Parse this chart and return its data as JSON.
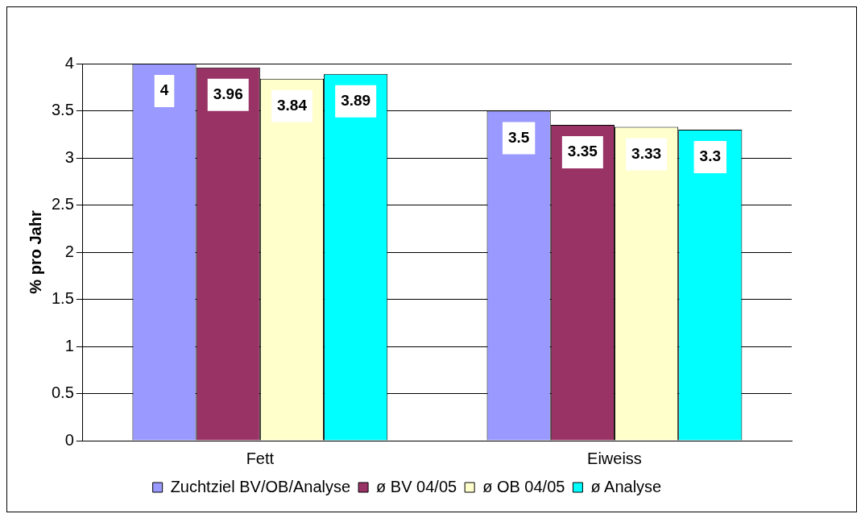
{
  "chart_data": {
    "type": "bar",
    "ylabel": "% pro Jahr",
    "categories": [
      "Fett",
      "Eiweiss"
    ],
    "series": [
      {
        "name": "Zuchtziel BV/OB/Analyse",
        "color": "#9999ff",
        "values": [
          4,
          3.5
        ]
      },
      {
        "name": "ø BV 04/05",
        "color": "#993366",
        "values": [
          3.96,
          3.35
        ]
      },
      {
        "name": "ø OB 04/05",
        "color": "#ffffcc",
        "values": [
          3.84,
          3.33
        ]
      },
      {
        "name": "ø Analyse",
        "color": "#00ffff",
        "values": [
          3.89,
          3.3
        ]
      }
    ],
    "ylim": [
      0,
      4
    ],
    "yticks": [
      0,
      0.5,
      1,
      1.5,
      2,
      2.5,
      3,
      3.5,
      4
    ],
    "grid": "y",
    "legend": "bottom",
    "data_labels": true
  }
}
